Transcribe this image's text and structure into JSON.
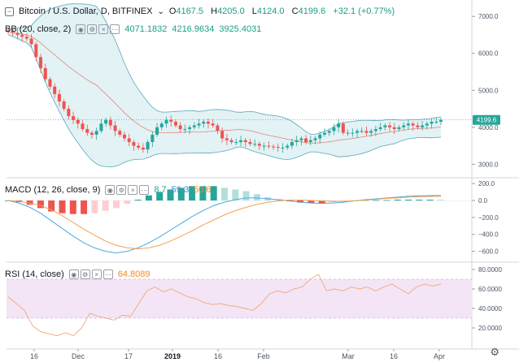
{
  "main_legend": {
    "collapse_icon": "minus-box-icon",
    "symbol": "Bitcoin / U.S. Dollar, D, BITFINEX",
    "ohlc": {
      "o_label": "O",
      "o": "4167.5",
      "h_label": "H",
      "h": "4205.0",
      "l_label": "L",
      "l": "4124.0",
      "c_label": "C",
      "c": "4199.6",
      "change": "+32.1 (+0.77%)"
    }
  },
  "bb_legend": {
    "name": "BB (20, close, 2)",
    "v1": "4071.1832",
    "v2": "4216.9634",
    "v3": "3925.4031"
  },
  "macd_legend": {
    "name": "MACD (12, 26, close, 9)",
    "v1": "8.7",
    "v2": "59.3",
    "v3": "50.6"
  },
  "rsi_legend": {
    "name": "RSI (14, close)",
    "v1": "64.8089"
  },
  "last_price_tag": "4199.6",
  "x_axis_labels": [
    "16",
    "Dec",
    "17",
    "2019",
    "16",
    "Feb",
    "Mar",
    "16",
    "Apr"
  ],
  "colors": {
    "up": "#26a69a",
    "down": "#ef5350",
    "bb_fill": "#bfe3e8",
    "rsi_band": "#f3e5f5",
    "rsi_line": "#f4a77a",
    "macd_line": "#4aa8e8",
    "signal_line": "#f5a14f"
  },
  "chart_data": [
    {
      "type": "candlestick",
      "title": "Bitcoin / U.S. Dollar, D, BITFINEX",
      "ylim": [
        2700,
        7400
      ],
      "yticks": [
        3000,
        4000,
        5000,
        6000,
        7000
      ],
      "ytick_labels": [
        "3000.0",
        "4000.0",
        "5000.0",
        "6000.0",
        "7000.0"
      ],
      "last_close": 4199.6,
      "x_ticks": [
        "16",
        "Dec",
        "17",
        "2019",
        "16",
        "Feb",
        "Mar",
        "16",
        "Apr"
      ],
      "close_series": [
        6580,
        6550,
        6500,
        6450,
        6400,
        6250,
        5900,
        5600,
        5300,
        5100,
        4900,
        4700,
        4500,
        4300,
        4200,
        4100,
        3950,
        3850,
        3800,
        3900,
        4100,
        4200,
        4050,
        3900,
        3800,
        3700,
        3600,
        3500,
        3450,
        3400,
        3600,
        3800,
        4000,
        4100,
        4200,
        4150,
        4050,
        3950,
        3950,
        4000,
        4050,
        4100,
        4150,
        4100,
        4050,
        3900,
        3700,
        3650,
        3600,
        3600,
        3650,
        3600,
        3550,
        3550,
        3500,
        3500,
        3480,
        3470,
        3450,
        3450,
        3500,
        3600,
        3650,
        3700,
        3600,
        3650,
        3700,
        3800,
        3850,
        3900,
        4000,
        4100,
        3850,
        3850,
        3850,
        3900,
        3900,
        3850,
        3900,
        3950,
        4000,
        4050,
        4000,
        3950,
        4000,
        4050,
        4100,
        4050,
        4000,
        4050,
        4100,
        4150,
        4150,
        4200
      ]
    },
    {
      "type": "line",
      "title": "MACD (12, 26, close, 9)",
      "ylim": [
        -700,
        240
      ],
      "yticks": [
        200,
        0,
        -200,
        -400,
        -600
      ],
      "ytick_labels": [
        "200.0",
        "0.0",
        "−200.0",
        "−400.0",
        "−600.0"
      ],
      "series": [
        {
          "name": "MACD",
          "values": [
            0,
            -30,
            -80,
            -150,
            -240,
            -330,
            -420,
            -500,
            -560,
            -600,
            -620,
            -600,
            -560,
            -500,
            -430,
            -350,
            -270,
            -190,
            -120,
            -60,
            -20,
            10,
            30,
            30,
            20,
            10,
            -5,
            -20,
            -30,
            -35,
            -30,
            -20,
            -5,
            10,
            20,
            30,
            40,
            50,
            55,
            58,
            59
          ]
        },
        {
          "name": "Signal",
          "values": [
            0,
            -10,
            -30,
            -60,
            -110,
            -180,
            -260,
            -340,
            -410,
            -480,
            -530,
            -560,
            -570,
            -560,
            -530,
            -480,
            -420,
            -360,
            -290,
            -230,
            -170,
            -120,
            -80,
            -45,
            -20,
            -5,
            5,
            5,
            0,
            -5,
            -10,
            -10,
            -5,
            5,
            15,
            25,
            30,
            40,
            45,
            48,
            51
          ]
        }
      ],
      "histogram": [
        0,
        -20,
        -50,
        -90,
        -130,
        -150,
        -160,
        -160,
        -150,
        -120,
        -90,
        -40,
        10,
        60,
        100,
        130,
        150,
        170,
        170,
        170,
        150,
        130,
        110,
        75,
        40,
        15,
        -10,
        -25,
        -30,
        -30,
        -20,
        -10,
        0,
        5,
        5,
        5,
        10,
        10,
        10,
        10,
        9
      ]
    },
    {
      "type": "line",
      "title": "RSI (14, close)",
      "ylim": [
        0,
        85
      ],
      "yticks": [
        80,
        60,
        40,
        20
      ],
      "ytick_labels": [
        "80.0000",
        "60.0000",
        "40.0000",
        "20.0000"
      ],
      "band": [
        30,
        70
      ],
      "series": [
        {
          "name": "RSI",
          "values": [
            52,
            45,
            38,
            22,
            16,
            14,
            12,
            15,
            12,
            20,
            35,
            32,
            30,
            28,
            33,
            32,
            45,
            58,
            62,
            57,
            60,
            56,
            52,
            50,
            46,
            44,
            45,
            43,
            42,
            40,
            38,
            45,
            55,
            58,
            56,
            60,
            62,
            70,
            75,
            58,
            60,
            58,
            62,
            60,
            62,
            58,
            62,
            65,
            60,
            55,
            62,
            65,
            63,
            65
          ]
        }
      ]
    }
  ]
}
